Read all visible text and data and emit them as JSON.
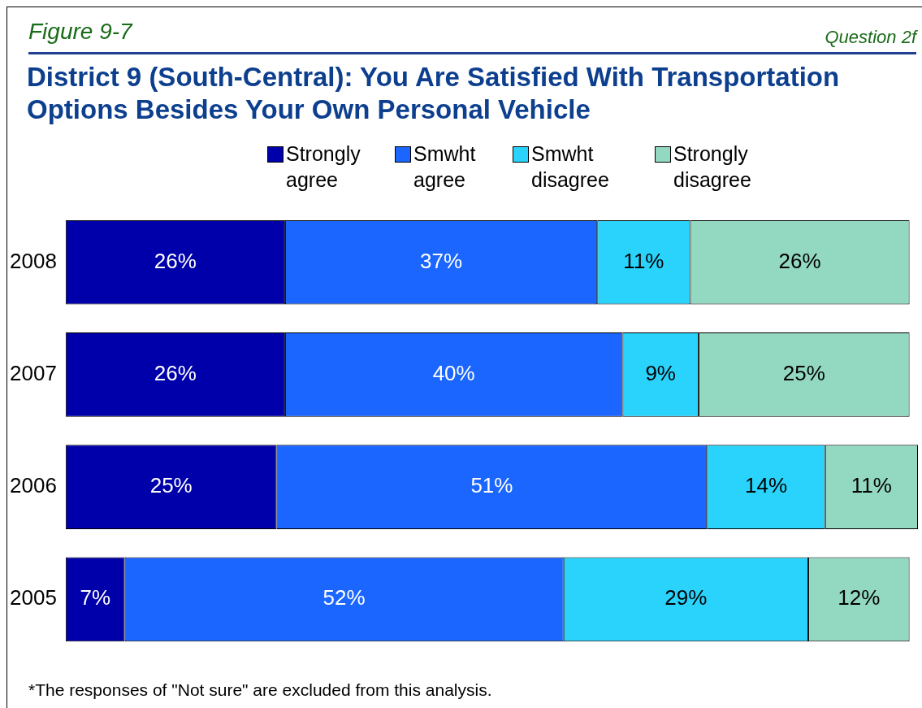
{
  "chart_data": {
    "type": "bar",
    "orientation": "horizontal",
    "stacked": true,
    "title": "District 9 (South-Central): You Are Satisfied With Transportation Options Besides Your Own Personal Vehicle",
    "annotations": [
      "Figure 9-7",
      "Question 2f",
      "*The responses of \"Not sure\" are excluded from this analysis."
    ],
    "categories": [
      "2008",
      "2007",
      "2006",
      "2005"
    ],
    "series": [
      {
        "name": "Strongly agree",
        "color": "#0000aa",
        "values": [
          26,
          26,
          25,
          7
        ],
        "value_labels": [
          "26%",
          "26%",
          "25%",
          "7%"
        ]
      },
      {
        "name": "Smwht agree",
        "color": "#1a66ff",
        "values": [
          37,
          40,
          51,
          52
        ],
        "value_labels": [
          "37%",
          "40%",
          "51%",
          "52%"
        ]
      },
      {
        "name": "Smwht disagree",
        "color": "#29d3fb",
        "values": [
          11,
          9,
          14,
          29
        ],
        "value_labels": [
          "11%",
          "9%",
          "14%",
          "29%"
        ]
      },
      {
        "name": "Strongly disagree",
        "color": "#93d8c0",
        "values": [
          26,
          25,
          11,
          12
        ],
        "value_labels": [
          "26%",
          "25%",
          "11%",
          "12%"
        ]
      }
    ],
    "legend": "top",
    "tick_labels": "y"
  }
}
